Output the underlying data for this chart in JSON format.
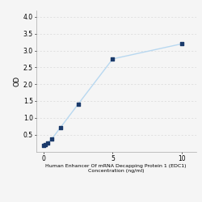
{
  "x": [
    0,
    0.156,
    0.313,
    0.625,
    1.25,
    2.5,
    5,
    10
  ],
  "y": [
    0.175,
    0.2,
    0.26,
    0.38,
    0.72,
    1.4,
    2.75,
    3.2
  ],
  "xlabel_line1": "Human Enhancer Of mRNA Decapping Protein 1 (EDC1)",
  "xlabel_line2": "Concentration (ng/ml)",
  "ylabel": "OD",
  "xlim": [
    -0.5,
    11
  ],
  "ylim": [
    0,
    4.2
  ],
  "yticks": [
    0.5,
    1,
    1.5,
    2,
    2.5,
    3,
    3.5,
    4
  ],
  "xticks": [
    0,
    5,
    10
  ],
  "line_color": "#b8d8f0",
  "marker_color": "#1a3a6b",
  "marker_size": 3.5,
  "line_width": 1.0,
  "grid_color": "#d8d8d8",
  "bg_color": "#f5f5f5",
  "xlabel_fontsize": 4.5,
  "ylabel_fontsize": 6,
  "tick_fontsize": 5.5
}
